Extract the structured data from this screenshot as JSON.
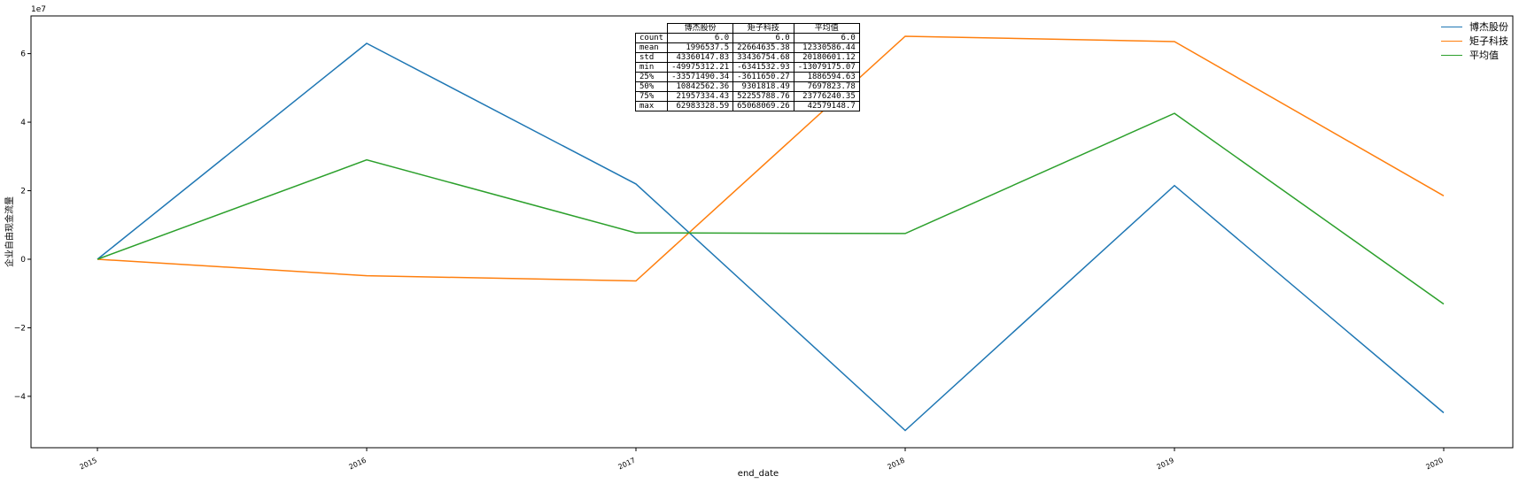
{
  "chart_data": {
    "type": "line",
    "categories": [
      "2015",
      "2016",
      "2017",
      "2018",
      "2019",
      "2020"
    ],
    "xlabel": "end_date",
    "ylabel": "企业自由现金流量",
    "y_scale_label": "1e7",
    "y_ticks": [
      "−4",
      "−2",
      "0",
      "2",
      "4",
      "6"
    ],
    "ylim": [
      -55000000,
      71000000
    ],
    "grid": false,
    "legend_position": "top-right",
    "series": [
      {
        "name": "博杰股份",
        "color": "#1f77b4",
        "values": [
          0,
          62983328.59,
          21957334.43,
          -49975312.21,
          21500000,
          -44800000
        ]
      },
      {
        "name": "矩子科技",
        "color": "#ff7f0e",
        "values": [
          0,
          -4800000,
          -6341532.93,
          65068069.26,
          63500000,
          18500000
        ]
      },
      {
        "name": "平均值",
        "color": "#2ca02c",
        "values": [
          0,
          29000000,
          7700000,
          7500000,
          42579148.7,
          -13079175.07
        ]
      }
    ],
    "table": {
      "columns": [
        "博杰股份",
        "矩子科技",
        "平均值"
      ],
      "rows": [
        {
          "label": "count",
          "values": [
            "6.0",
            "6.0",
            "6.0"
          ]
        },
        {
          "label": "mean",
          "values": [
            "1996537.5",
            "22664635.38",
            "12330586.44"
          ]
        },
        {
          "label": "std",
          "values": [
            "43360147.83",
            "33436754.68",
            "20180601.12"
          ]
        },
        {
          "label": "min",
          "values": [
            "-49975312.21",
            "-6341532.93",
            "-13079175.07"
          ]
        },
        {
          "label": "25%",
          "values": [
            "-33571490.34",
            "-3611650.27",
            "1886594.63"
          ]
        },
        {
          "label": "50%",
          "values": [
            "10842562.36",
            "9301818.49",
            "7697823.78"
          ]
        },
        {
          "label": "75%",
          "values": [
            "21957334.43",
            "52255788.76",
            "23776240.35"
          ]
        },
        {
          "label": "max",
          "values": [
            "62983328.59",
            "65068069.26",
            "42579148.7"
          ]
        }
      ]
    }
  }
}
